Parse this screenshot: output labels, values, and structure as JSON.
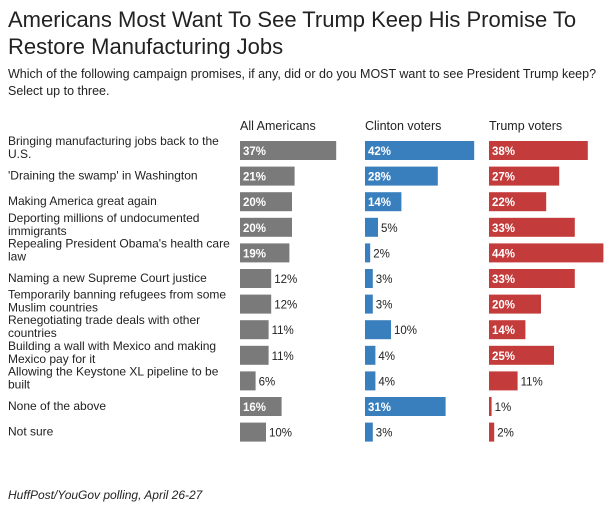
{
  "title": "Americans Most Want To See Trump Keep His Promise To Restore Manufacturing Jobs",
  "subtitle": "Which of the following campaign promises, if any, did or do you MOST want to see President Trump keep? Select up to three.",
  "source": "HuffPost/YouGov polling, April 26-27",
  "colors": {
    "all": "#7a7a7a",
    "clinton": "#3a7fbd",
    "trump": "#c43b3b"
  },
  "chart_data": {
    "type": "bar",
    "orientation": "horizontal",
    "title": "Americans Most Want To See Trump Keep His Promise To Restore Manufacturing Jobs",
    "value_format": "percent",
    "categories": [
      [
        "Bringing manufacturing jobs back to the",
        "U.S."
      ],
      [
        "'Draining the swamp' in Washington"
      ],
      [
        "Making America great again"
      ],
      [
        "Deporting millions of undocumented",
        "immigrants"
      ],
      [
        "Repealing President Obama's health care",
        "law"
      ],
      [
        "Naming a new Supreme Court justice"
      ],
      [
        "Temporarily banning refugees from some",
        "Muslim countries"
      ],
      [
        "Renegotiating trade deals with other",
        "countries"
      ],
      [
        "Building a wall with Mexico and making",
        "Mexico pay for it"
      ],
      [
        "Allowing the Keystone XL pipeline to be",
        "built"
      ],
      [
        "None of the above"
      ],
      [
        "Not sure"
      ]
    ],
    "series": [
      {
        "name": "All Americans",
        "color": "#7a7a7a",
        "values": [
          37,
          21,
          20,
          20,
          19,
          12,
          12,
          11,
          11,
          6,
          16,
          10
        ]
      },
      {
        "name": "Clinton voters",
        "color": "#3a7fbd",
        "values": [
          42,
          28,
          14,
          5,
          2,
          3,
          3,
          10,
          4,
          4,
          31,
          3
        ]
      },
      {
        "name": "Trump voters",
        "color": "#c43b3b",
        "values": [
          38,
          27,
          22,
          33,
          44,
          33,
          20,
          14,
          25,
          11,
          1,
          2
        ]
      }
    ]
  }
}
